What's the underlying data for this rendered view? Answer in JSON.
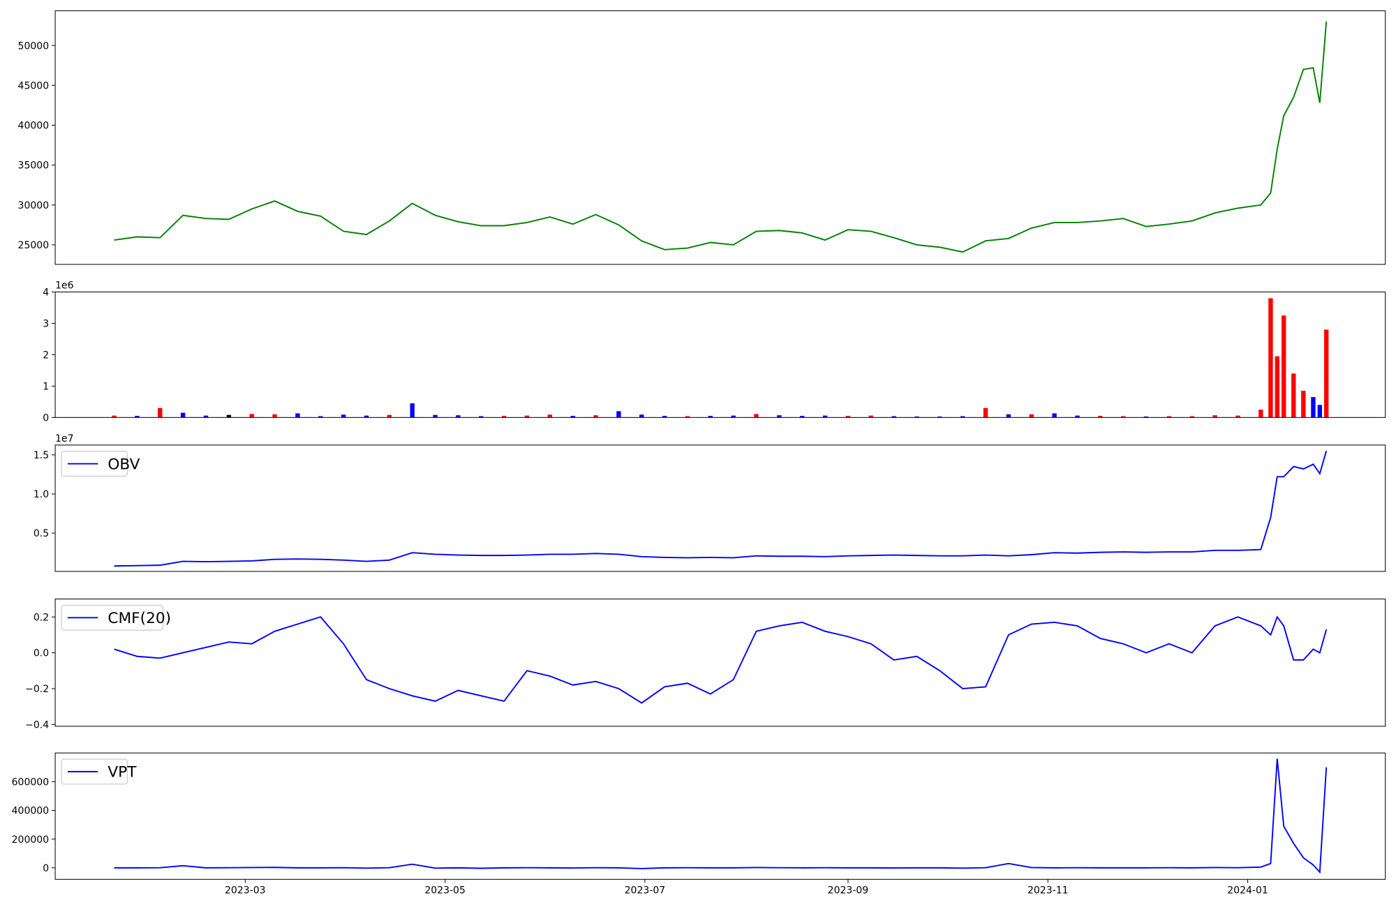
{
  "chart_data": [
    {
      "type": "line",
      "x": [
        "2023-01-20",
        "2023-01-27",
        "2023-02-03",
        "2023-02-10",
        "2023-02-17",
        "2023-02-24",
        "2023-03-03",
        "2023-03-10",
        "2023-03-17",
        "2023-03-24",
        "2023-03-31",
        "2023-04-07",
        "2023-04-14",
        "2023-04-21",
        "2023-04-28",
        "2023-05-05",
        "2023-05-12",
        "2023-05-19",
        "2023-05-26",
        "2023-06-02",
        "2023-06-09",
        "2023-06-16",
        "2023-06-23",
        "2023-06-30",
        "2023-07-07",
        "2023-07-14",
        "2023-07-21",
        "2023-07-28",
        "2023-08-04",
        "2023-08-11",
        "2023-08-18",
        "2023-08-25",
        "2023-09-01",
        "2023-09-08",
        "2023-09-15",
        "2023-09-22",
        "2023-09-29",
        "2023-10-06",
        "2023-10-13",
        "2023-10-20",
        "2023-10-27",
        "2023-11-03",
        "2023-11-10",
        "2023-11-17",
        "2023-11-24",
        "2023-12-01",
        "2023-12-08",
        "2023-12-15",
        "2023-12-22",
        "2023-12-29",
        "2024-01-05",
        "2024-01-08",
        "2024-01-10",
        "2024-01-12",
        "2024-01-15",
        "2024-01-18",
        "2024-01-21",
        "2024-01-23",
        "2024-01-25"
      ],
      "values": [
        25600,
        26000,
        25900,
        28700,
        28300,
        28200,
        29500,
        30500,
        29200,
        28600,
        26700,
        26300,
        28000,
        30200,
        28700,
        27900,
        27400,
        27400,
        27800,
        28500,
        27600,
        28800,
        27500,
        25500,
        24400,
        24600,
        25300,
        25000,
        26700,
        26800,
        26500,
        25600,
        26900,
        26700,
        25900,
        25000,
        24700,
        24100,
        25500,
        25800,
        27100,
        27800,
        27800,
        28000,
        28300,
        27300,
        27600,
        28000,
        29000,
        29600,
        30000,
        31500,
        37000,
        41200,
        43500,
        47000,
        47200,
        42800,
        53000
      ],
      "color": "#008000",
      "xlim": [
        "2023-01-02",
        "2024-02-12"
      ],
      "ylim": [
        22550,
        54350
      ],
      "yticks": [
        25000,
        30000,
        35000,
        40000,
        45000,
        50000
      ]
    },
    {
      "type": "bar",
      "x": [
        "2023-01-20",
        "2023-01-27",
        "2023-02-03",
        "2023-02-10",
        "2023-02-17",
        "2023-02-24",
        "2023-03-03",
        "2023-03-10",
        "2023-03-17",
        "2023-03-24",
        "2023-03-31",
        "2023-04-07",
        "2023-04-14",
        "2023-04-21",
        "2023-04-28",
        "2023-05-05",
        "2023-05-12",
        "2023-05-19",
        "2023-05-26",
        "2023-06-02",
        "2023-06-09",
        "2023-06-16",
        "2023-06-23",
        "2023-06-30",
        "2023-07-07",
        "2023-07-14",
        "2023-07-21",
        "2023-07-28",
        "2023-08-04",
        "2023-08-11",
        "2023-08-18",
        "2023-08-25",
        "2023-09-01",
        "2023-09-08",
        "2023-09-15",
        "2023-09-22",
        "2023-09-29",
        "2023-10-06",
        "2023-10-13",
        "2023-10-20",
        "2023-10-27",
        "2023-11-03",
        "2023-11-10",
        "2023-11-17",
        "2023-11-24",
        "2023-12-01",
        "2023-12-08",
        "2023-12-15",
        "2023-12-22",
        "2023-12-29",
        "2024-01-05",
        "2024-01-08",
        "2024-01-10",
        "2024-01-12",
        "2024-01-15",
        "2024-01-18",
        "2024-01-21",
        "2024-01-23",
        "2024-01-25"
      ],
      "values": [
        60000,
        50000,
        300000,
        150000,
        60000,
        80000,
        110000,
        100000,
        130000,
        40000,
        90000,
        60000,
        80000,
        450000,
        80000,
        70000,
        40000,
        50000,
        60000,
        90000,
        50000,
        70000,
        200000,
        90000,
        50000,
        40000,
        50000,
        60000,
        110000,
        70000,
        50000,
        60000,
        50000,
        60000,
        40000,
        30000,
        30000,
        40000,
        300000,
        100000,
        100000,
        130000,
        60000,
        50000,
        40000,
        30000,
        40000,
        40000,
        70000,
        60000,
        250000,
        3800000,
        1950000,
        3250000,
        1400000,
        850000,
        650000,
        400000,
        2800000
      ],
      "colors": [
        "#ff0000",
        "#0000ff",
        "#ff0000",
        "#0000ff",
        "#0000ff",
        "#000000",
        "#ff0000",
        "#ff0000",
        "#0000ff",
        "#0000ff",
        "#0000ff",
        "#0000ff",
        "#ff0000",
        "#0000ff",
        "#0000ff",
        "#0000ff",
        "#0000ff",
        "#ff0000",
        "#ff0000",
        "#ff0000",
        "#0000ff",
        "#ff0000",
        "#0000ff",
        "#0000ff",
        "#0000ff",
        "#ff0000",
        "#0000ff",
        "#0000ff",
        "#ff0000",
        "#0000ff",
        "#0000ff",
        "#0000ff",
        "#ff0000",
        "#ff0000",
        "#0000ff",
        "#0000ff",
        "#0000ff",
        "#0000ff",
        "#ff0000",
        "#0000ff",
        "#ff0000",
        "#0000ff",
        "#0000ff",
        "#ff0000",
        "#ff0000",
        "#0000ff",
        "#ff0000",
        "#ff0000",
        "#ff0000",
        "#ff0000",
        "#ff0000",
        "#ff0000",
        "#ff0000",
        "#ff0000",
        "#ff0000",
        "#ff0000",
        "#0000ff",
        "#0000ff",
        "#ff0000"
      ],
      "xlim": [
        "2023-01-02",
        "2024-02-12"
      ],
      "ylim": [
        0,
        4000000
      ],
      "yticks": [
        0,
        {
          "value": 1000000,
          "label": "1"
        },
        {
          "value": 2000000,
          "label": "2"
        },
        {
          "value": 3000000,
          "label": "3"
        },
        {
          "value": 4000000,
          "label": "4"
        }
      ],
      "y_offset_label": "1e6"
    },
    {
      "type": "line",
      "x": [
        "2023-01-20",
        "2023-01-27",
        "2023-02-03",
        "2023-02-10",
        "2023-02-17",
        "2023-02-24",
        "2023-03-03",
        "2023-03-10",
        "2023-03-17",
        "2023-03-24",
        "2023-03-31",
        "2023-04-07",
        "2023-04-14",
        "2023-04-21",
        "2023-04-28",
        "2023-05-05",
        "2023-05-12",
        "2023-05-19",
        "2023-05-26",
        "2023-06-02",
        "2023-06-09",
        "2023-06-16",
        "2023-06-23",
        "2023-06-30",
        "2023-07-07",
        "2023-07-14",
        "2023-07-21",
        "2023-07-28",
        "2023-08-04",
        "2023-08-11",
        "2023-08-18",
        "2023-08-25",
        "2023-09-01",
        "2023-09-08",
        "2023-09-15",
        "2023-09-22",
        "2023-09-29",
        "2023-10-06",
        "2023-10-13",
        "2023-10-20",
        "2023-10-27",
        "2023-11-03",
        "2023-11-10",
        "2023-11-17",
        "2023-11-24",
        "2023-12-01",
        "2023-12-08",
        "2023-12-15",
        "2023-12-22",
        "2023-12-29",
        "2024-01-05",
        "2024-01-08",
        "2024-01-10",
        "2024-01-12",
        "2024-01-15",
        "2024-01-18",
        "2024-01-21",
        "2024-01-23",
        "2024-01-25"
      ],
      "series": [
        {
          "name": "OBV",
          "color": "#0000ff",
          "values": [
            800000,
            850000,
            900000,
            1400000,
            1350000,
            1400000,
            1450000,
            1650000,
            1700000,
            1650000,
            1550000,
            1400000,
            1550000,
            2500000,
            2300000,
            2200000,
            2150000,
            2150000,
            2200000,
            2300000,
            2300000,
            2400000,
            2300000,
            2000000,
            1900000,
            1850000,
            1900000,
            1850000,
            2100000,
            2050000,
            2050000,
            2000000,
            2100000,
            2150000,
            2200000,
            2150000,
            2100000,
            2100000,
            2200000,
            2100000,
            2250000,
            2500000,
            2450000,
            2550000,
            2600000,
            2550000,
            2600000,
            2600000,
            2800000,
            2800000,
            2900000,
            7000000,
            12200000,
            12200000,
            13500000,
            13200000,
            13800000,
            12600000,
            15500000
          ]
        }
      ],
      "xlim": [
        "2023-01-02",
        "2024-02-12"
      ],
      "ylim": [
        110000,
        16250000
      ],
      "yticks": [
        {
          "value": 5000000,
          "label": "0.5"
        },
        {
          "value": 10000000,
          "label": "1.0"
        },
        {
          "value": 15000000,
          "label": "1.5"
        }
      ],
      "y_offset_label": "1e7",
      "legend": "upper-left"
    },
    {
      "type": "line",
      "x": [
        "2023-01-20",
        "2023-01-27",
        "2023-02-03",
        "2023-02-10",
        "2023-02-17",
        "2023-02-24",
        "2023-03-03",
        "2023-03-10",
        "2023-03-17",
        "2023-03-24",
        "2023-03-31",
        "2023-04-07",
        "2023-04-14",
        "2023-04-21",
        "2023-04-28",
        "2023-05-05",
        "2023-05-12",
        "2023-05-19",
        "2023-05-26",
        "2023-06-02",
        "2023-06-09",
        "2023-06-16",
        "2023-06-23",
        "2023-06-30",
        "2023-07-07",
        "2023-07-14",
        "2023-07-21",
        "2023-07-28",
        "2023-08-04",
        "2023-08-11",
        "2023-08-18",
        "2023-08-25",
        "2023-09-01",
        "2023-09-08",
        "2023-09-15",
        "2023-09-22",
        "2023-09-29",
        "2023-10-06",
        "2023-10-13",
        "2023-10-20",
        "2023-10-27",
        "2023-11-03",
        "2023-11-10",
        "2023-11-17",
        "2023-11-24",
        "2023-12-01",
        "2023-12-08",
        "2023-12-15",
        "2023-12-22",
        "2023-12-29",
        "2024-01-05",
        "2024-01-08",
        "2024-01-10",
        "2024-01-12",
        "2024-01-15",
        "2024-01-18",
        "2024-01-21",
        "2024-01-23",
        "2024-01-25"
      ],
      "series": [
        {
          "name": "CMF(20)",
          "color": "#0000ff",
          "values": [
            0.02,
            -0.02,
            -0.03,
            0.0,
            0.03,
            0.06,
            0.05,
            0.12,
            0.16,
            0.2,
            0.05,
            -0.15,
            -0.2,
            -0.24,
            -0.27,
            -0.21,
            -0.24,
            -0.27,
            -0.1,
            -0.13,
            -0.18,
            -0.16,
            -0.2,
            -0.28,
            -0.19,
            -0.17,
            -0.23,
            -0.15,
            0.12,
            0.15,
            0.17,
            0.12,
            0.09,
            0.05,
            -0.04,
            -0.02,
            -0.1,
            -0.2,
            -0.19,
            0.1,
            0.16,
            0.17,
            0.15,
            0.08,
            0.05,
            0.0,
            0.05,
            0.0,
            0.15,
            0.2,
            0.15,
            0.1,
            0.2,
            0.15,
            -0.04,
            -0.04,
            0.02,
            0.0,
            0.13
          ]
        }
      ],
      "xlim": [
        "2023-01-02",
        "2024-02-12"
      ],
      "ylim": [
        -0.41,
        0.3
      ],
      "yticks": [
        {
          "value": -0.4,
          "label": "−0.4"
        },
        {
          "value": -0.2,
          "label": "−0.2"
        },
        {
          "value": 0,
          "label": "0.0"
        },
        {
          "value": 0.2,
          "label": "0.2"
        }
      ],
      "legend": "upper-left"
    },
    {
      "type": "line",
      "x": [
        "2023-01-20",
        "2023-01-27",
        "2023-02-03",
        "2023-02-10",
        "2023-02-17",
        "2023-02-24",
        "2023-03-03",
        "2023-03-10",
        "2023-03-17",
        "2023-03-24",
        "2023-03-31",
        "2023-04-07",
        "2023-04-14",
        "2023-04-21",
        "2023-04-28",
        "2023-05-05",
        "2023-05-12",
        "2023-05-19",
        "2023-05-26",
        "2023-06-02",
        "2023-06-09",
        "2023-06-16",
        "2023-06-23",
        "2023-06-30",
        "2023-07-07",
        "2023-07-14",
        "2023-07-21",
        "2023-07-28",
        "2023-08-04",
        "2023-08-11",
        "2023-08-18",
        "2023-08-25",
        "2023-09-01",
        "2023-09-08",
        "2023-09-15",
        "2023-09-22",
        "2023-09-29",
        "2023-10-06",
        "2023-10-13",
        "2023-10-20",
        "2023-10-27",
        "2023-11-03",
        "2023-11-10",
        "2023-11-17",
        "2023-11-24",
        "2023-12-01",
        "2023-12-08",
        "2023-12-15",
        "2023-12-22",
        "2023-12-29",
        "2024-01-05",
        "2024-01-08",
        "2024-01-10",
        "2024-01-12",
        "2024-01-15",
        "2024-01-18",
        "2024-01-21",
        "2024-01-23",
        "2024-01-25"
      ],
      "series": [
        {
          "name": "VPT",
          "color": "#0000ff",
          "values": [
            0,
            0,
            1000,
            15000,
            0,
            1000,
            2000,
            3000,
            0,
            0,
            1000,
            -2000,
            1000,
            25000,
            -2000,
            0,
            -3000,
            0,
            1000,
            0,
            -1000,
            1000,
            0,
            -5000,
            0,
            1000,
            0,
            0,
            2000,
            1000,
            0,
            1000,
            0,
            0,
            -1000,
            0,
            0,
            -2000,
            1000,
            30000,
            2000,
            0,
            1000,
            0,
            0,
            0,
            1000,
            0,
            2000,
            1000,
            5000,
            30000,
            760000,
            290000,
            170000,
            70000,
            20000,
            -30000,
            700000
          ]
        }
      ],
      "xlim": [
        "2023-01-02",
        "2024-02-12"
      ],
      "ylim": [
        -80000,
        800000
      ],
      "yticks": [
        0,
        200000,
        400000,
        600000
      ],
      "xticks": [
        "2023-03",
        "2023-05",
        "2023-07",
        "2023-09",
        "2023-11",
        "2024-01"
      ],
      "legend": "upper-left"
    }
  ]
}
